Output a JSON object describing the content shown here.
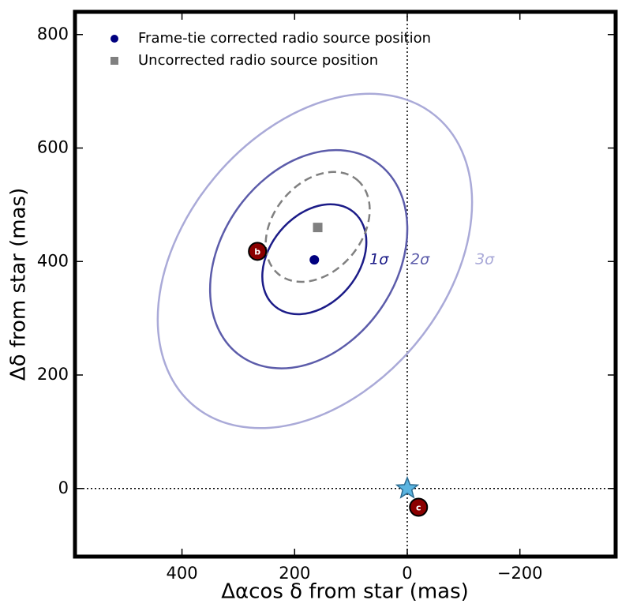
{
  "chart_data": {
    "type": "scatter",
    "xlabel": "Δαcos δ from star (mas)",
    "ylabel": "Δδ from star (mas)",
    "xlim": [
      590,
      -370
    ],
    "ylim": [
      -120,
      840
    ],
    "xticks": [
      400,
      200,
      0,
      {
        "value": -200,
        "label": "−200"
      }
    ],
    "yticks": [
      0,
      200,
      400,
      600,
      800
    ],
    "hlines": [
      0
    ],
    "vlines": [
      0
    ],
    "legend": "upper left",
    "series": [
      {
        "name": "Frame-tie corrected radio source position",
        "color": "#00007f",
        "marker": "circle",
        "x": [
          165
        ],
        "y": [
          403
        ]
      },
      {
        "name": "Uncorrected radio source position",
        "color": "#808080",
        "marker": "square",
        "x": [
          159
        ],
        "y": [
          460
        ]
      }
    ],
    "ellipses": [
      {
        "label": "1σ",
        "color": "#1c1c88",
        "cx": 165,
        "cy": 404,
        "a": 109,
        "b": 78,
        "angle": 50,
        "dashed": false
      },
      {
        "label": "2σ",
        "color": "#5c5caa",
        "cx": 175,
        "cy": 404,
        "a": 210,
        "b": 154,
        "angle": 55,
        "dashed": false
      },
      {
        "label": "3σ",
        "color": "#aaaad8",
        "cx": 164,
        "cy": 401,
        "a": 335,
        "b": 230,
        "angle": 50,
        "dashed": false
      },
      {
        "color": "#808080",
        "cx": 159,
        "cy": 461,
        "a": 109,
        "b": 78,
        "angle": 50,
        "dashed": true
      }
    ],
    "planets": [
      {
        "label": "b",
        "x": 266,
        "y": 418,
        "color": "#8b0000"
      },
      {
        "label": "c",
        "x": -20,
        "y": -33,
        "color": "#8b0000"
      }
    ],
    "star": {
      "x": 0,
      "y": 0,
      "color": "#5ab4e0"
    }
  }
}
